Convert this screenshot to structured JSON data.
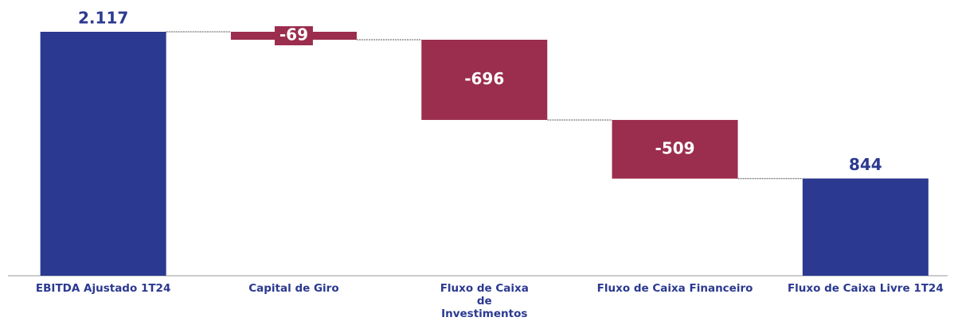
{
  "chart_data": {
    "type": "waterfall",
    "categories": [
      "EBITDA Ajustado 1T24",
      "Capital de Giro",
      "Fluxo de Caixa\nde\nInvestimentos",
      "Fluxo de Caixa Financeiro",
      "Fluxo de Caixa Livre 1T24"
    ],
    "values": [
      2117,
      -69,
      -696,
      -509,
      844
    ],
    "value_labels": [
      "2.117",
      "-69",
      "-696",
      "-509",
      "844"
    ],
    "totals": [
      true,
      false,
      false,
      false,
      true
    ],
    "colors": [
      "#2b3990",
      "#9b2d4e",
      "#9b2d4e",
      "#9b2d4e",
      "#2b3990"
    ]
  }
}
